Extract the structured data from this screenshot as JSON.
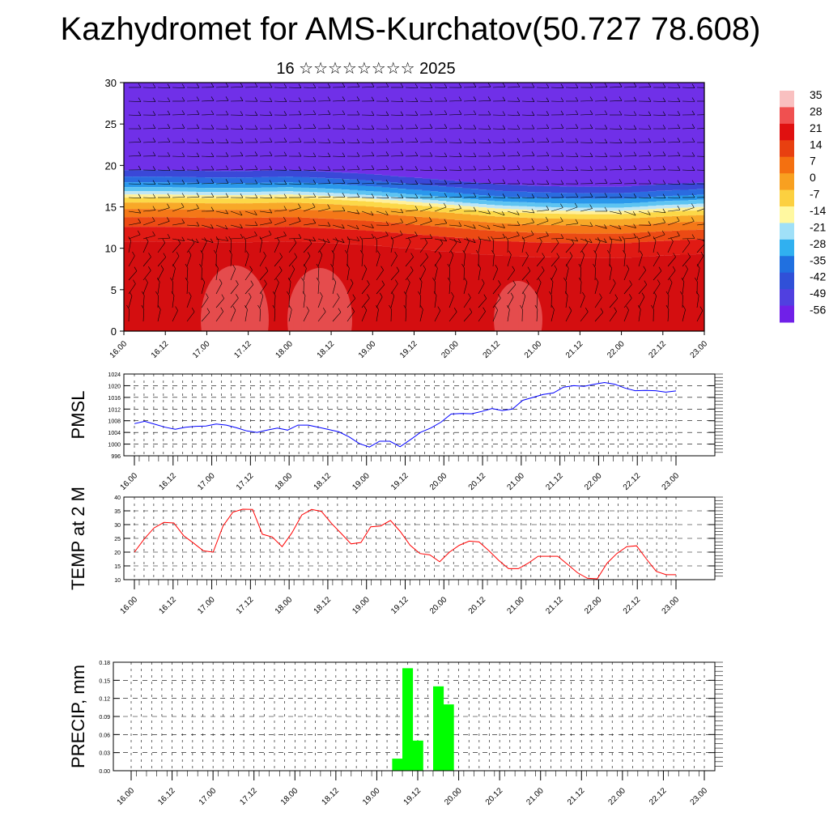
{
  "title": "Kazhydromet for AMS-Kurchatov(50.727 78.608)",
  "subtitle": "16 ☆☆☆☆☆☆☆☆ 2025",
  "chart_data": [
    {
      "type": "heatmap",
      "name": "temperature-wind cross section",
      "y_ticks": [
        "0",
        "5",
        "10",
        "15",
        "20",
        "25",
        "30"
      ],
      "ylim": [
        0,
        30
      ],
      "x_tick_labels": [
        "16.00",
        "16.12",
        "17.00",
        "17.12",
        "18.00",
        "18.12",
        "19.00",
        "19.12",
        "20.00",
        "20.12",
        "21.00",
        "21.12",
        "22.00",
        "22.12",
        "23.00"
      ],
      "colorbar_labels": [
        "35",
        "28",
        "21",
        "14",
        "7",
        "0",
        "-7",
        "-14",
        "-21",
        "-28",
        "-35",
        "-42",
        "-49",
        "-56"
      ],
      "colorbar_colors": [
        "#f9c0c0",
        "#f05050",
        "#e01010",
        "#e84010",
        "#f47010",
        "#f8a020",
        "#fcd040",
        "#fff8a0",
        "#a0e0f8",
        "#30b0f0",
        "#2070e0",
        "#3050d8",
        "#5040e0",
        "#7020e8"
      ],
      "freezing_level_km": [
        16.5,
        16.5,
        16.4,
        16.4,
        16.5,
        16.3,
        16.0,
        15.6,
        15.2,
        14.8,
        14.6,
        14.5,
        14.5,
        14.8,
        15.0
      ]
    },
    {
      "type": "line",
      "ylabel": "PMSL",
      "yticks": [
        "996",
        "1000",
        "1004",
        "1008",
        "1012",
        "1016",
        "1020",
        "1024"
      ],
      "ylim": [
        996,
        1024
      ],
      "x_tick_labels": [
        "16.00",
        "16.12",
        "17.00",
        "17.12",
        "18.00",
        "18.12",
        "19.00",
        "19.12",
        "20.00",
        "20.12",
        "21.00",
        "21.12",
        "22.00",
        "22.12",
        "23.00"
      ],
      "color": "#0000ff",
      "values": [
        1007,
        1007.8,
        1006.8,
        1005.8,
        1005.1,
        1005.8,
        1006.1,
        1006.2,
        1006.9,
        1006.5,
        1005.6,
        1004.5,
        1004,
        1004.8,
        1005.5,
        1004.8,
        1006.5,
        1006.5,
        1005.8,
        1005,
        1004.2,
        1002.5,
        1000.2,
        999,
        1001,
        1001,
        999.1,
        1001.5,
        1004,
        1005.5,
        1007.5,
        1010.3,
        1010.5,
        1010.4,
        1011.2,
        1012.2,
        1011.5,
        1012,
        1015,
        1016,
        1017,
        1017.5,
        1019.5,
        1020,
        1019.8,
        1020.5,
        1021.1,
        1020.5,
        1019.2,
        1018.3,
        1018.4,
        1018.3,
        1017.8,
        1018.2
      ]
    },
    {
      "type": "line",
      "ylabel": "TEMP at 2 M",
      "yticks": [
        "10",
        "15",
        "20",
        "25",
        "30",
        "35",
        "40"
      ],
      "ylim": [
        10,
        40
      ],
      "x_tick_labels": [
        "16.00",
        "16.12",
        "17.00",
        "17.12",
        "18.00",
        "18.12",
        "19.00",
        "19.12",
        "20.00",
        "20.12",
        "21.00",
        "21.12",
        "22.00",
        "22.12",
        "23.00"
      ],
      "color": "#ff0000",
      "values": [
        20,
        24.8,
        28.8,
        30.8,
        30.6,
        26,
        23.3,
        20.5,
        20,
        29.5,
        34.5,
        35.6,
        35.5,
        26.5,
        25.5,
        22,
        27,
        33.5,
        35.5,
        34.8,
        30.5,
        26.8,
        23,
        23.5,
        29.2,
        29.5,
        31.5,
        27.5,
        22.5,
        19.5,
        19,
        16.5,
        20,
        22.5,
        24,
        23.7,
        20.5,
        17,
        14,
        14,
        16,
        18.5,
        18.5,
        18.5,
        15.5,
        12.5,
        10.5,
        10.3,
        16,
        19.5,
        22,
        22.3,
        17.5,
        13,
        11.8,
        11.8
      ]
    },
    {
      "type": "bar",
      "ylabel": "PRECIP, mm",
      "yticks": [
        "0.00",
        "0.03",
        "0.06",
        "0.09",
        "0.12",
        "0.15",
        "0.18"
      ],
      "ylim": [
        0,
        0.18
      ],
      "x_tick_labels": [
        "16.00",
        "16.12",
        "17.00",
        "17.12",
        "18.00",
        "18.12",
        "19.00",
        "19.12",
        "20.00",
        "20.12",
        "21.00",
        "21.12",
        "22.00",
        "22.12",
        "23.00"
      ],
      "color": "#00ff00",
      "bars": [
        {
          "x_index": 26,
          "value": 0.02
        },
        {
          "x_index": 27,
          "value": 0.17
        },
        {
          "x_index": 28,
          "value": 0.05
        },
        {
          "x_index": 30,
          "value": 0.14
        },
        {
          "x_index": 31,
          "value": 0.11
        }
      ]
    }
  ]
}
